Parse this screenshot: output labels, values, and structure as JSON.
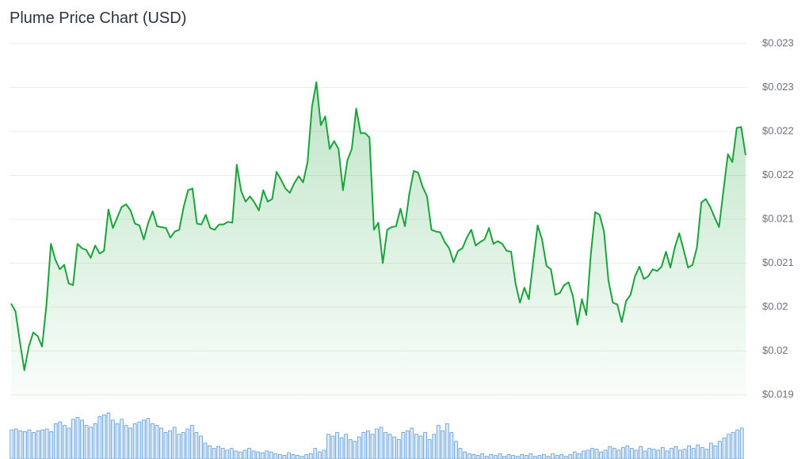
{
  "chart_data": {
    "type": "line",
    "title": "Plume Price Chart (USD)",
    "color": "#1aa33a",
    "area": true,
    "grid": true,
    "ylim": [
      0.0195,
      0.0235
    ],
    "yticks": [
      {
        "value": 0.0195,
        "label": "$0.019"
      },
      {
        "value": 0.02,
        "label": "$0.02"
      },
      {
        "value": 0.0205,
        "label": "$0.02"
      },
      {
        "value": 0.021,
        "label": "$0.021"
      },
      {
        "value": 0.0215,
        "label": "$0.021"
      },
      {
        "value": 0.022,
        "label": "$0.022"
      },
      {
        "value": 0.0225,
        "label": "$0.022"
      },
      {
        "value": 0.023,
        "label": "$0.023"
      },
      {
        "value": 0.0235,
        "label": "$0.023"
      }
    ],
    "values": [
      0.02054,
      0.02045,
      0.0201,
      0.01978,
      0.02005,
      0.02021,
      0.02017,
      0.02005,
      0.02053,
      0.02122,
      0.02104,
      0.02093,
      0.02098,
      0.02077,
      0.02075,
      0.02122,
      0.02117,
      0.02115,
      0.02106,
      0.0212,
      0.02111,
      0.02114,
      0.02161,
      0.0214,
      0.02152,
      0.02164,
      0.02167,
      0.0216,
      0.02145,
      0.02143,
      0.02127,
      0.02146,
      0.02159,
      0.02142,
      0.02141,
      0.0214,
      0.02129,
      0.02136,
      0.02138,
      0.02164,
      0.02183,
      0.02185,
      0.02145,
      0.02144,
      0.02155,
      0.0214,
      0.02138,
      0.02144,
      0.02144,
      0.02147,
      0.02146,
      0.02212,
      0.02182,
      0.0217,
      0.02176,
      0.02169,
      0.0216,
      0.02183,
      0.0217,
      0.02173,
      0.02204,
      0.02195,
      0.02185,
      0.0218,
      0.02191,
      0.02199,
      0.02192,
      0.02215,
      0.02278,
      0.02306,
      0.02257,
      0.02267,
      0.0223,
      0.02239,
      0.0223,
      0.02183,
      0.02217,
      0.0223,
      0.02276,
      0.02248,
      0.02248,
      0.02243,
      0.02138,
      0.02146,
      0.021,
      0.02138,
      0.02141,
      0.02142,
      0.02162,
      0.02142,
      0.02179,
      0.02205,
      0.02203,
      0.02187,
      0.02176,
      0.02138,
      0.02136,
      0.02135,
      0.02124,
      0.02117,
      0.02101,
      0.02114,
      0.02117,
      0.02129,
      0.02138,
      0.0212,
      0.02124,
      0.02127,
      0.0214,
      0.02122,
      0.02125,
      0.02122,
      0.02114,
      0.02113,
      0.02077,
      0.02055,
      0.02072,
      0.02059,
      0.02102,
      0.02143,
      0.02127,
      0.02097,
      0.02093,
      0.02064,
      0.02066,
      0.02075,
      0.02078,
      0.02062,
      0.0203,
      0.02059,
      0.02041,
      0.02109,
      0.02158,
      0.02155,
      0.02136,
      0.0208,
      0.02055,
      0.02053,
      0.02033,
      0.02057,
      0.02064,
      0.02085,
      0.02096,
      0.02082,
      0.02085,
      0.02093,
      0.02091,
      0.02096,
      0.02113,
      0.02095,
      0.02118,
      0.02134,
      0.02115,
      0.02095,
      0.02098,
      0.02118,
      0.02169,
      0.02173,
      0.02164,
      0.02152,
      0.02141,
      0.02183,
      0.02224,
      0.02215,
      0.02254,
      0.02255,
      0.02223
    ],
    "volume": {
      "color": "#5b9bd5",
      "values": [
        33,
        34,
        32,
        31,
        33,
        30,
        32,
        33,
        34,
        31,
        40,
        42,
        38,
        35,
        45,
        47,
        44,
        38,
        36,
        40,
        48,
        50,
        52,
        44,
        40,
        45,
        38,
        35,
        40,
        42,
        44,
        46,
        40,
        38,
        35,
        30,
        32,
        36,
        28,
        30,
        34,
        38,
        30,
        26,
        18,
        15,
        12,
        14,
        12,
        10,
        12,
        9,
        8,
        10,
        12,
        9,
        8,
        7,
        9,
        8,
        6,
        5,
        4,
        7,
        5,
        4,
        3,
        5,
        6,
        12,
        8,
        10,
        28,
        26,
        30,
        24,
        28,
        22,
        20,
        25,
        30,
        32,
        28,
        34,
        36,
        30,
        28,
        25,
        22,
        30,
        32,
        35,
        28,
        26,
        30,
        22,
        28,
        38,
        32,
        40,
        30,
        20,
        12,
        8,
        6,
        5,
        4,
        6,
        3,
        5,
        4,
        6,
        3,
        5,
        4,
        3,
        5,
        4,
        6,
        3,
        4,
        5,
        3,
        6,
        4,
        5,
        3,
        5,
        8,
        6,
        9,
        10,
        12,
        11,
        8,
        10,
        14,
        12,
        10,
        13,
        15,
        12,
        10,
        14,
        9,
        12,
        11,
        10,
        13,
        9,
        12,
        14,
        10,
        11,
        15,
        12,
        16,
        13,
        11,
        18,
        15,
        20,
        24,
        28,
        30,
        33,
        35
      ]
    }
  }
}
